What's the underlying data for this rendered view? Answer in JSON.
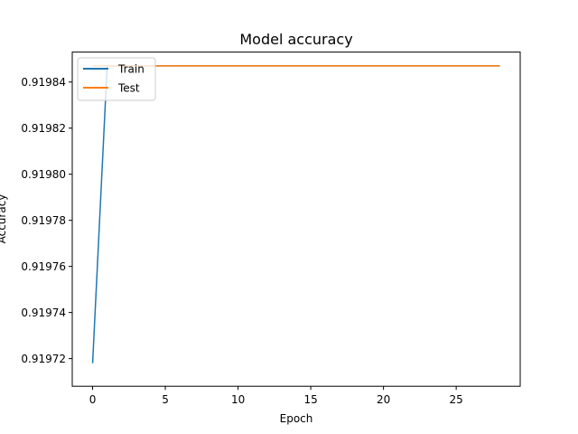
{
  "chart_data": {
    "type": "line",
    "title": "Model accuracy",
    "xlabel": "Epoch",
    "ylabel": "Accuracy",
    "xlim": [
      -1.4,
      29.4
    ],
    "ylim": [
      0.919708,
      0.919853
    ],
    "xticks": [
      0,
      5,
      10,
      15,
      20,
      25
    ],
    "xtick_labels": [
      "0",
      "5",
      "10",
      "15",
      "20",
      "25"
    ],
    "yticks": [
      0.91972,
      0.91974,
      0.91976,
      0.91978,
      0.9198,
      0.91982,
      0.91984
    ],
    "ytick_labels": [
      "0.91972",
      "0.91974",
      "0.91976",
      "0.91978",
      "0.91980",
      "0.91982",
      "0.91984"
    ],
    "grid": false,
    "legend_position": "top-left",
    "series": [
      {
        "name": "Train",
        "color": "#1f77b4",
        "x": [
          0,
          1,
          2,
          3,
          4,
          5,
          6,
          7,
          8,
          9,
          10,
          11,
          12,
          13,
          14,
          15,
          16,
          17,
          18,
          19,
          20,
          21,
          22,
          23,
          24,
          25,
          26,
          27,
          28
        ],
        "y": [
          0.919718,
          0.919847,
          0.919847,
          0.919847,
          0.919847,
          0.919847,
          0.919847,
          0.919847,
          0.919847,
          0.919847,
          0.919847,
          0.919847,
          0.919847,
          0.919847,
          0.919847,
          0.919847,
          0.919847,
          0.919847,
          0.919847,
          0.919847,
          0.919847,
          0.919847,
          0.919847,
          0.919847,
          0.919847,
          0.919847,
          0.919847,
          0.919847,
          0.919847
        ]
      },
      {
        "name": "Test",
        "color": "#ff7f0e",
        "x": [
          0,
          1,
          2,
          3,
          4,
          5,
          6,
          7,
          8,
          9,
          10,
          11,
          12,
          13,
          14,
          15,
          16,
          17,
          18,
          19,
          20,
          21,
          22,
          23,
          24,
          25,
          26,
          27,
          28
        ],
        "y": [
          0.919847,
          0.919847,
          0.919847,
          0.919847,
          0.919847,
          0.919847,
          0.919847,
          0.919847,
          0.919847,
          0.919847,
          0.919847,
          0.919847,
          0.919847,
          0.919847,
          0.919847,
          0.919847,
          0.919847,
          0.919847,
          0.919847,
          0.919847,
          0.919847,
          0.919847,
          0.919847,
          0.919847,
          0.919847,
          0.919847,
          0.919847,
          0.919847,
          0.919847
        ]
      }
    ]
  }
}
